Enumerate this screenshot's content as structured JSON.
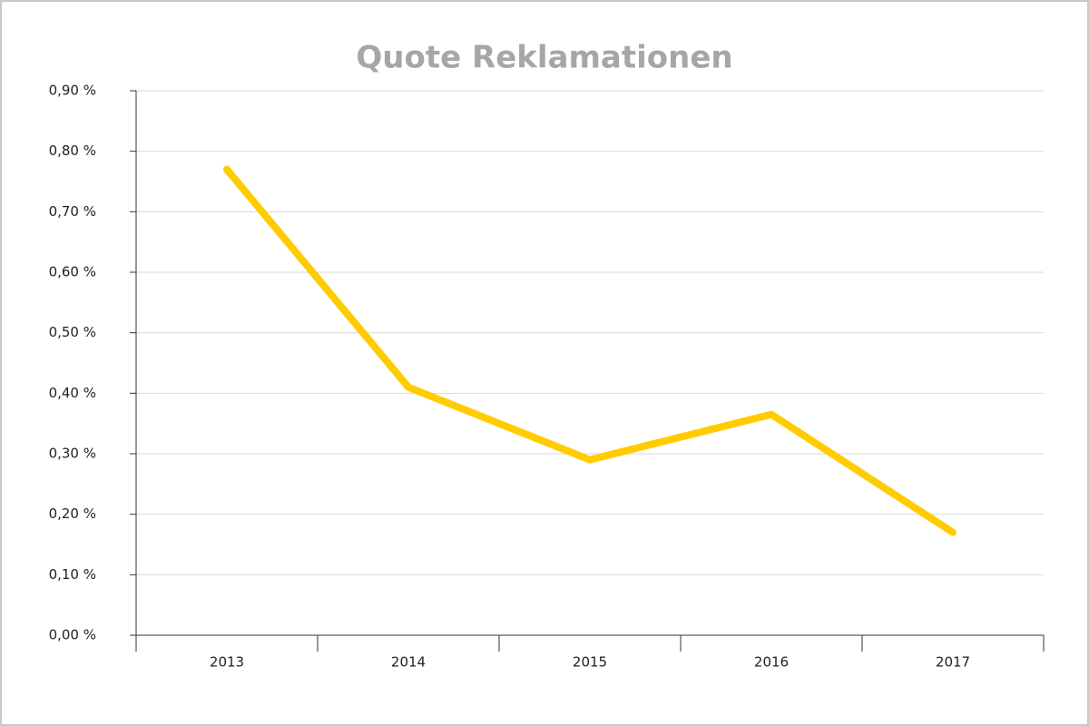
{
  "chart_data": {
    "type": "line",
    "title": "Quote Reklamationen",
    "categories": [
      "2013",
      "2014",
      "2015",
      "2016",
      "2017"
    ],
    "series": [
      {
        "name": "Quote Reklamationen",
        "color": "#ffcc00",
        "values": [
          0.77,
          0.41,
          0.29,
          0.365,
          0.17
        ]
      }
    ],
    "ylim": [
      0,
      0.9
    ],
    "yticks": [
      {
        "value": 0,
        "label": "0,00 %"
      },
      {
        "value": 0.1,
        "label": "0,10 %"
      },
      {
        "value": 0.2,
        "label": "0,20 %"
      },
      {
        "value": 0.3,
        "label": "0,30 %"
      },
      {
        "value": 0.4,
        "label": "0,40 %"
      },
      {
        "value": 0.5,
        "label": "0,50 %"
      },
      {
        "value": 0.6,
        "label": "0,60 %"
      },
      {
        "value": 0.7,
        "label": "0,70 %"
      },
      {
        "value": 0.8,
        "label": "0,80 %"
      },
      {
        "value": 0.9,
        "label": "0,90 %"
      }
    ],
    "grid": true
  }
}
